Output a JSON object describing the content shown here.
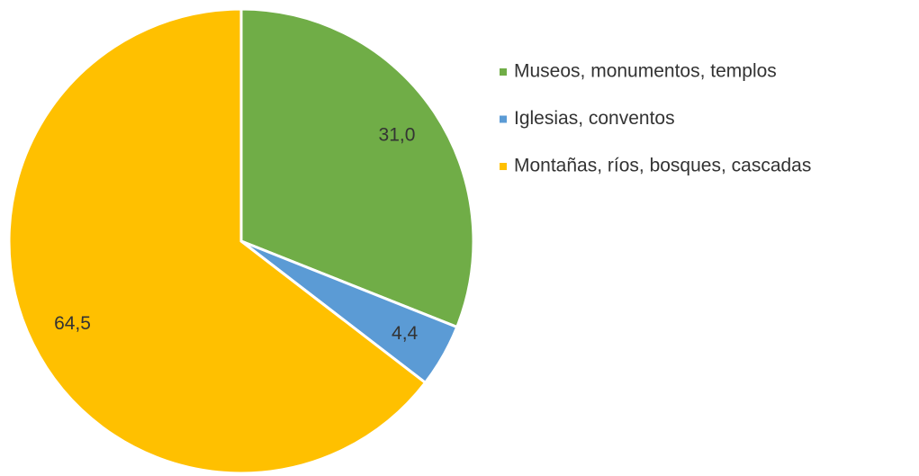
{
  "chart_data": {
    "type": "pie",
    "categories": [
      "Museos, monumentos, templos",
      "Iglesias, conventos",
      "Montañas, ríos, bosques, cascadas"
    ],
    "values": [
      31.0,
      4.4,
      64.5
    ],
    "value_labels": [
      "31,0",
      "4,4",
      "64,5"
    ],
    "colors": [
      "#70ad47",
      "#5b9bd5",
      "#ffc000"
    ],
    "legend": "right"
  }
}
